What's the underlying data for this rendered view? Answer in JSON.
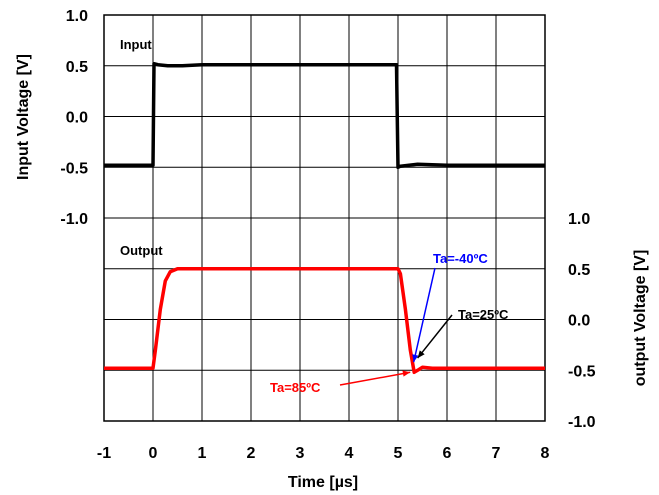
{
  "chart_data": {
    "type": "line",
    "title": "",
    "xlabel": "Time [µs]",
    "xlim": [
      -1,
      8
    ],
    "x_ticks": [
      "-1",
      "0",
      "1",
      "2",
      "3",
      "4",
      "5",
      "6",
      "7",
      "8"
    ],
    "grid": true,
    "legend": "none",
    "panels": [
      {
        "label": "Input",
        "ylabel": "Input Voltage [V]",
        "axis_side": "left",
        "ylim": [
          -1.0,
          1.0
        ],
        "y_ticks": [
          "1.0",
          "0.5",
          "0.0",
          "-0.5",
          "-1.0"
        ],
        "series": [
          {
            "color": "#000000",
            "x": [
              -1,
              0,
              0.02,
              0.1,
              0.3,
              0.6,
              1.0,
              4.97,
              5.0,
              5.05,
              5.4,
              6.0,
              8.0
            ],
            "y": [
              -0.48,
              -0.48,
              0.52,
              0.51,
              0.5,
              0.5,
              0.51,
              0.51,
              -0.5,
              -0.49,
              -0.47,
              -0.48,
              -0.48
            ]
          }
        ]
      },
      {
        "label": "Output",
        "ylabel": "output Voltage [V]",
        "axis_side": "right",
        "ylim": [
          -1.0,
          1.0
        ],
        "y_ticks": [
          "1.0",
          "0.5",
          "0.0",
          "-0.5",
          "-1.0"
        ],
        "series": [
          {
            "color": "#ff0000",
            "x": [
              -1,
              0,
              0.05,
              0.15,
              0.25,
              0.35,
              0.5,
              1.0,
              5.0,
              5.05,
              5.15,
              5.25,
              5.33,
              5.4,
              5.5,
              5.7,
              8.0
            ],
            "y": [
              -0.48,
              -0.48,
              -0.3,
              0.1,
              0.38,
              0.47,
              0.5,
              0.5,
              0.5,
              0.45,
              0.1,
              -0.3,
              -0.52,
              -0.5,
              -0.47,
              -0.48,
              -0.48
            ]
          }
        ]
      }
    ],
    "annotations": [
      {
        "text": "Ta=-40ºC",
        "color": "#0000ff",
        "x": 5.32,
        "y": -0.42
      },
      {
        "text": "Ta=25ºC",
        "color": "#000000",
        "x": 5.4,
        "y": -0.38
      },
      {
        "text": "Ta=85ºC",
        "color": "#ff0000",
        "x": 5.25,
        "y": -0.52
      }
    ]
  }
}
